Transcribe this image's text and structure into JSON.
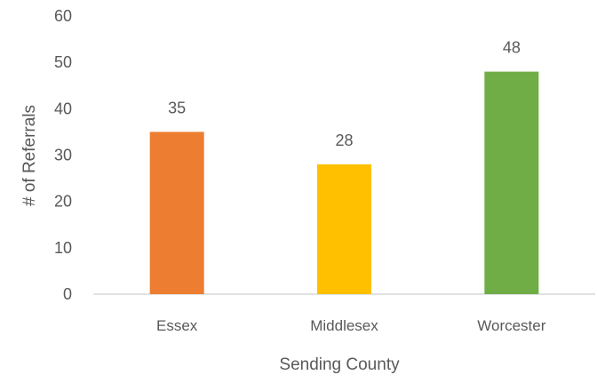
{
  "chart_data": {
    "type": "bar",
    "categories": [
      "Essex",
      "Middlesex",
      "Worcester"
    ],
    "values": [
      35,
      28,
      48
    ],
    "bar_colors": [
      "#ED7D31",
      "#FFC000",
      "#70AD47"
    ],
    "title": "",
    "xlabel": "Sending County",
    "ylabel": "# of Referrals",
    "ylim": [
      0,
      60
    ],
    "yticks": [
      0,
      10,
      20,
      30,
      40,
      50,
      60
    ],
    "grid": false,
    "data_labels": true,
    "legend": "none"
  }
}
